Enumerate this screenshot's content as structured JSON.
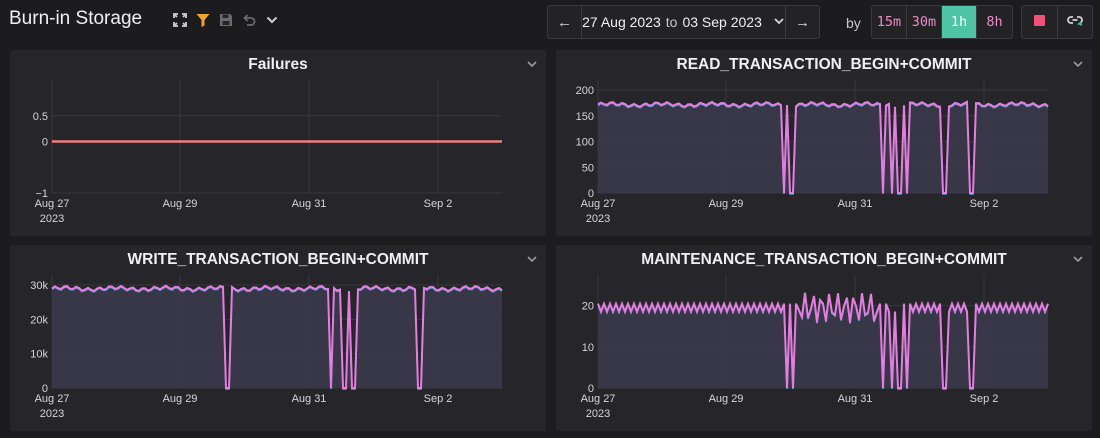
{
  "header": {
    "title": "Burn-in Storage",
    "icons": [
      "expand-icon",
      "filter-icon",
      "save-icon",
      "undo-icon",
      "chevron-down-icon"
    ]
  },
  "date_range": {
    "prev_label": "←",
    "from": "27 Aug 2023",
    "to_word": "to",
    "to": "03 Sep 2023",
    "next_label": "→"
  },
  "interval": {
    "by_label": "by",
    "options": [
      "15m",
      "30m",
      "1h",
      "8h"
    ],
    "selected": "1h"
  },
  "colors": {
    "accent": "#4fc4a4",
    "series_pink": "#e37ee0",
    "series_blue": "#5aa0d8",
    "failures_line": "#f08080",
    "stop": "#f0507a"
  },
  "chart_data": [
    {
      "id": "failures",
      "type": "line",
      "title": "Failures",
      "x_ticks": [
        "Aug 27",
        "Aug 29",
        "Aug 31",
        "Sep 2"
      ],
      "x_year": "2023",
      "y_ticks": [
        "0.5",
        "0",
        "−1"
      ],
      "ylim": [
        -1,
        1
      ],
      "series": [
        {
          "values": [
            0,
            0
          ]
        }
      ]
    },
    {
      "id": "read",
      "type": "line",
      "title": "READ_TRANSACTION_BEGIN+COMMIT",
      "x_ticks": [
        "Aug 27",
        "Aug 29",
        "Aug 31",
        "Sep 2"
      ],
      "x_year": "2023",
      "y_ticks": [
        "200",
        "150",
        "100",
        "50",
        "0"
      ],
      "ylim": [
        0,
        200
      ],
      "baseline": 172,
      "amplitude": 5,
      "dips": [
        0.415,
        0.43,
        0.635,
        0.655,
        0.67,
        0.685,
        0.77,
        0.83
      ],
      "series": [
        {
          "values": [
            172,
            172
          ]
        }
      ]
    },
    {
      "id": "write",
      "type": "line",
      "title": "WRITE_TRANSACTION_BEGIN+COMMIT",
      "x_ticks": [
        "Aug 27",
        "Aug 29",
        "Aug 31",
        "Sep 2"
      ],
      "x_year": "2023",
      "y_ticks": [
        "30k",
        "20k",
        "10k",
        "0"
      ],
      "ylim": [
        0,
        30000
      ],
      "baseline": 29000,
      "amplitude": 800,
      "dips": [
        0.385,
        0.395,
        0.62,
        0.645,
        0.655,
        0.67,
        0.815,
        0.82
      ],
      "series": [
        {
          "values": [
            29000,
            29000
          ]
        }
      ]
    },
    {
      "id": "maintenance",
      "type": "line",
      "title": "MAINTENANCE_TRANSACTION_BEGIN+COMMIT",
      "x_ticks": [
        "Aug 27",
        "Aug 29",
        "Aug 31",
        "Sep 2"
      ],
      "x_year": "2023",
      "y_ticks": [
        "20",
        "10",
        "0"
      ],
      "ylim": [
        0,
        25
      ],
      "baseline": 19.5,
      "amplitude": 1.2,
      "dips": [
        0.42,
        0.435,
        0.635,
        0.655,
        0.67,
        0.685,
        0.77,
        0.83
      ],
      "series": [
        {
          "values": [
            19.5,
            19.5
          ]
        }
      ]
    }
  ]
}
